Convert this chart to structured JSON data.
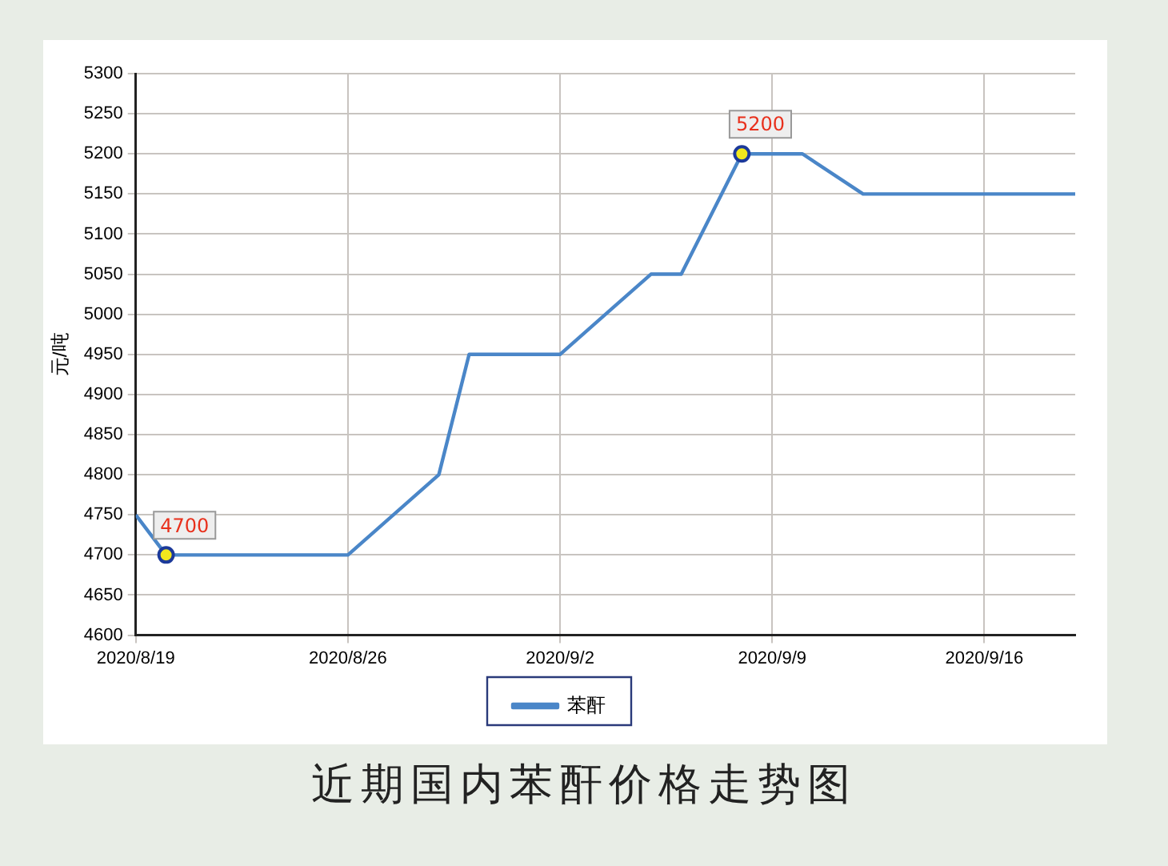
{
  "chart_data": {
    "type": "line",
    "title": "近期国内苯酐价格走势图",
    "ylabel": "元/吨",
    "x": [
      "2020-08-19",
      "2020-08-20",
      "2020-08-26",
      "2020-08-29",
      "2020-08-30",
      "2020-09-02",
      "2020-09-05",
      "2020-09-06",
      "2020-09-08",
      "2020-09-10",
      "2020-09-12",
      "2020-09-19"
    ],
    "series": [
      {
        "name": "苯酐",
        "color": "#4a86c8",
        "values": [
          4750,
          4700,
          4700,
          4800,
          4950,
          4950,
          5050,
          5050,
          5200,
          5200,
          5150,
          5150
        ],
        "value_labels": [
          null,
          "4700",
          null,
          null,
          null,
          null,
          null,
          null,
          "5200",
          null,
          null,
          null
        ]
      }
    ],
    "xlim": [
      "2020-08-19",
      "2020-09-19"
    ],
    "xticks": [
      {
        "value": "2020-08-19",
        "label": "2020/8/19"
      },
      {
        "value": "2020-08-26",
        "label": "2020/8/26"
      },
      {
        "value": "2020-09-02",
        "label": "2020/9/2"
      },
      {
        "value": "2020-09-09",
        "label": "2020/9/9"
      },
      {
        "value": "2020-09-16",
        "label": "2020/9/16"
      }
    ],
    "ylim": [
      4600,
      5300
    ],
    "yticks": [
      4600,
      4650,
      4700,
      4750,
      4800,
      4850,
      4900,
      4950,
      5000,
      5050,
      5100,
      5150,
      5200,
      5250,
      5300
    ],
    "grid": true,
    "legend": "bottom",
    "marker": "none",
    "line_style": "solid"
  }
}
